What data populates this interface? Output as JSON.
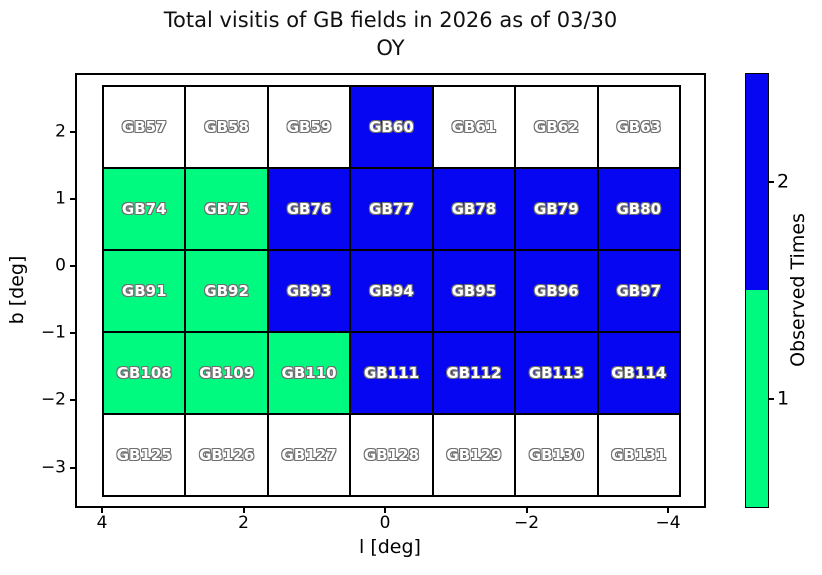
{
  "title": {
    "line1": "Total visitis of GB fields in 2026 as of 03/30",
    "line2": "OY"
  },
  "x_axis": {
    "label": "l [deg]",
    "ticks": [
      "4",
      "2",
      "0",
      "−2",
      "−4"
    ],
    "tick_values": [
      4,
      2,
      0,
      -2,
      -4
    ]
  },
  "y_axis": {
    "label": "b [deg]",
    "ticks": [
      "2",
      "1",
      "0",
      "−1",
      "−2",
      "−3"
    ],
    "tick_values": [
      2,
      1,
      0,
      -1,
      -2,
      -3
    ]
  },
  "colorbar": {
    "label": "Observed Times",
    "ticks": [
      {
        "label": "2",
        "value": 2
      },
      {
        "label": "1",
        "value": 1
      }
    ],
    "segments": [
      {
        "value": 2,
        "color": "#0606f2"
      },
      {
        "value": 1,
        "color": "#00fa7f"
      }
    ]
  },
  "colors": {
    "0": "#ffffff",
    "1": "#00fa7f",
    "2": "#0606f2"
  },
  "chart_data": {
    "type": "heatmap",
    "title": "Total visitis of GB fields in 2026 as of 03/30 OY",
    "xlabel": "l [deg]",
    "ylabel": "b [deg]",
    "xticks": [
      4,
      2,
      0,
      -2,
      -4
    ],
    "yticks": [
      2,
      1,
      0,
      -1,
      -2,
      -3
    ],
    "xlim": [
      4.4,
      -4.5
    ],
    "ylim": [
      2.9,
      -3.6
    ],
    "colorbar_label": "Observed Times",
    "colorbar_ticks": [
      1,
      2
    ],
    "rows": [
      {
        "fields": [
          "GB57",
          "GB58",
          "GB59",
          "GB60",
          "GB61",
          "GB62",
          "GB63"
        ],
        "values": [
          0,
          0,
          0,
          2,
          0,
          0,
          0
        ]
      },
      {
        "fields": [
          "GB74",
          "GB75",
          "GB76",
          "GB77",
          "GB78",
          "GB79",
          "GB80"
        ],
        "values": [
          1,
          1,
          2,
          2,
          2,
          2,
          2
        ]
      },
      {
        "fields": [
          "GB91",
          "GB92",
          "GB93",
          "GB94",
          "GB95",
          "GB96",
          "GB97"
        ],
        "values": [
          1,
          1,
          2,
          2,
          2,
          2,
          2
        ]
      },
      {
        "fields": [
          "GB108",
          "GB109",
          "GB110",
          "GB111",
          "GB112",
          "GB113",
          "GB114"
        ],
        "values": [
          1,
          1,
          1,
          2,
          2,
          2,
          2
        ]
      },
      {
        "fields": [
          "GB125",
          "GB126",
          "GB127",
          "GB128",
          "GB129",
          "GB130",
          "GB131"
        ],
        "values": [
          0,
          0,
          0,
          0,
          0,
          0,
          0
        ]
      }
    ]
  }
}
